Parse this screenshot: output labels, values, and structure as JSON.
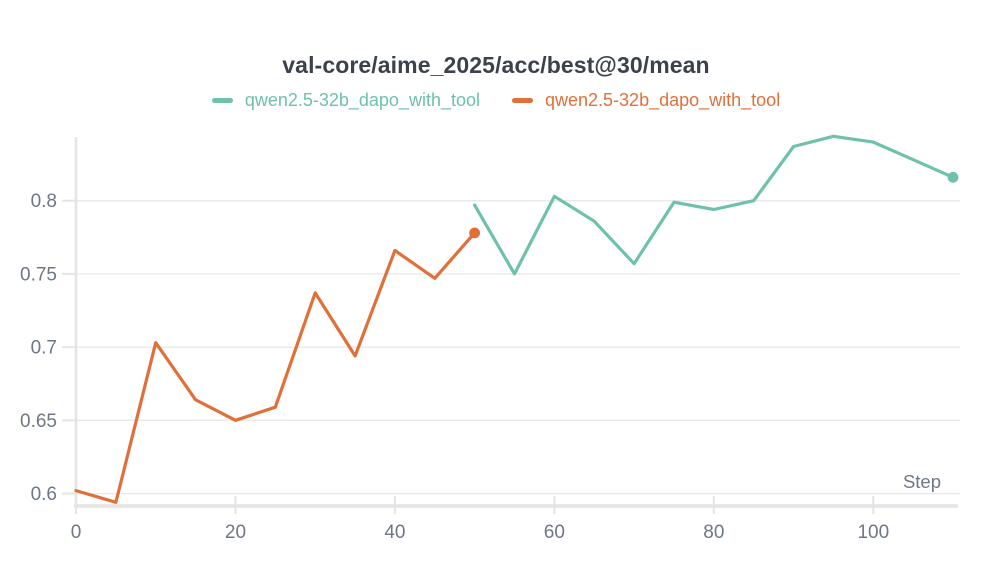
{
  "header": {
    "title_ref": "see chart_data.title"
  },
  "chart_data": {
    "type": "line",
    "title": "val-core/aime_2025/acc/best@30/mean",
    "xlabel": "Step",
    "ylabel": "",
    "grid": true,
    "legend_position": "top-center",
    "x_axis": {
      "ticks": [
        0,
        20,
        40,
        60,
        80,
        100
      ],
      "range": [
        0,
        111
      ]
    },
    "y_axis": {
      "tick_labels": [
        "0.6",
        "0.65",
        "0.7",
        "0.75",
        "0.8"
      ],
      "tick_values": [
        0.6,
        0.65,
        0.7,
        0.75,
        0.8
      ],
      "range": [
        0.5915,
        0.8435
      ]
    },
    "series": [
      {
        "name": "qwen2.5-32b_dapo_with_tool",
        "color": "#6ec1aa",
        "x": [
          50,
          55,
          60,
          65,
          70,
          75,
          80,
          85,
          90,
          95,
          100,
          105,
          110
        ],
        "y": [
          0.797,
          0.75,
          0.803,
          0.786,
          0.757,
          0.799,
          0.794,
          0.8,
          0.837,
          0.844,
          0.84,
          0.828,
          0.816
        ],
        "end_marker": true
      },
      {
        "name": "qwen2.5-32b_dapo_with_tool",
        "color": "#e0703a",
        "x": [
          0,
          5,
          10,
          15,
          20,
          25,
          30,
          35,
          40,
          45,
          50
        ],
        "y": [
          0.602,
          0.594,
          0.703,
          0.664,
          0.65,
          0.659,
          0.737,
          0.694,
          0.766,
          0.747,
          0.778
        ],
        "end_marker": true
      }
    ],
    "colors": {
      "title_text": "#3b424c",
      "axis_text": "#6e7786",
      "gridline": "#e9e9e9",
      "axis_line": "#e4e4e4"
    }
  }
}
